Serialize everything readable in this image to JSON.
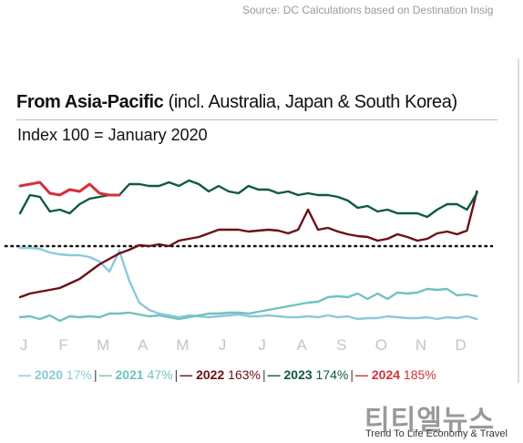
{
  "source": "Source: DC Calculations based on Destination Insig",
  "title_bold": "From Asia-Pacific",
  "title_rest": " (incl. Australia, Japan & South Korea)",
  "subtitle": "Index 100 = January 2020",
  "legend": [
    {
      "swatch": "—",
      "year": "2020",
      "pct": " 17%",
      "color": "#8cc8dc"
    },
    {
      "swatch": "—",
      "year": "2021",
      "pct": " 47%",
      "color": "#6fc3bd"
    },
    {
      "swatch": "—",
      "year": "2022",
      "pct": " 163%",
      "color": "#6b0f14"
    },
    {
      "swatch": "—",
      "year": "2023",
      "pct": " 174%",
      "color": "#0e5a3c"
    },
    {
      "swatch": "—",
      "year": "2024",
      "pct": " 185%",
      "color": "#d4303a"
    }
  ],
  "watermark": {
    "title": "티티엘뉴스",
    "tagline": "Trend To Life Economy & Travel"
  },
  "chart_data": {
    "type": "line",
    "title": "From Asia-Pacific (incl. Australia, Japan & South Korea)",
    "subtitle": "Index 100 = January 2020",
    "categories": [
      "J",
      "F",
      "M",
      "A",
      "M",
      "J",
      "J",
      "A",
      "S",
      "O",
      "N",
      "D"
    ],
    "reference_line": 100,
    "ylim": [
      0,
      230
    ],
    "series": [
      {
        "name": "2020",
        "color": "#8cc8dc",
        "x": [
          0,
          0.25,
          0.5,
          0.75,
          1,
          1.25,
          1.5,
          1.75,
          2,
          2.25,
          2.5,
          2.75,
          3,
          3.25,
          3.5,
          3.75,
          4,
          4.25,
          4.5,
          4.75,
          5,
          5.25,
          5.5,
          5.75,
          6,
          6.25,
          6.5,
          6.75,
          7,
          7.25,
          7.5,
          7.75,
          8,
          8.25,
          8.5,
          8.75,
          9,
          9.25,
          9.5,
          9.75,
          10,
          10.25,
          10.5,
          10.75,
          11,
          11.25,
          11.5
        ],
        "y": [
          98,
          98,
          97,
          93,
          91,
          90,
          90,
          88,
          83,
          72,
          95,
          62,
          38,
          30,
          26,
          24,
          22,
          24,
          23,
          22,
          23,
          24,
          25,
          23,
          23,
          24,
          23,
          22,
          22,
          23,
          22,
          24,
          22,
          23,
          20,
          21,
          21,
          23,
          22,
          21,
          21,
          22,
          20,
          22,
          21,
          23,
          20
        ]
      },
      {
        "name": "2021",
        "color": "#6fc3bd",
        "x": [
          0,
          0.25,
          0.5,
          0.75,
          1,
          1.25,
          1.5,
          1.75,
          2,
          2.25,
          2.5,
          2.75,
          3,
          3.25,
          3.5,
          3.75,
          4,
          4.25,
          4.5,
          4.75,
          5,
          5.25,
          5.5,
          5.75,
          6,
          6.25,
          6.5,
          6.75,
          7,
          7.25,
          7.5,
          7.75,
          8,
          8.25,
          8.5,
          8.75,
          9,
          9.25,
          9.5,
          9.75,
          10,
          10.25,
          10.5,
          10.75,
          11,
          11.25,
          11.5
        ],
        "y": [
          22,
          23,
          20,
          24,
          18,
          23,
          22,
          23,
          22,
          26,
          26,
          27,
          25,
          23,
          24,
          22,
          20,
          22,
          24,
          26,
          26,
          27,
          27,
          26,
          28,
          30,
          32,
          34,
          36,
          38,
          39,
          44,
          45,
          44,
          48,
          42,
          48,
          42,
          49,
          48,
          49,
          53,
          52,
          53,
          46,
          47,
          45
        ]
      },
      {
        "name": "2022",
        "color": "#6b0f14",
        "x": [
          0,
          0.25,
          0.5,
          0.75,
          1,
          1.25,
          1.5,
          1.75,
          2,
          2.25,
          2.5,
          2.75,
          3,
          3.25,
          3.5,
          3.75,
          4,
          4.25,
          4.5,
          4.75,
          5,
          5.25,
          5.5,
          5.75,
          6,
          6.25,
          6.5,
          6.75,
          7,
          7.25,
          7.5,
          7.75,
          8,
          8.25,
          8.5,
          8.75,
          9,
          9.25,
          9.5,
          9.75,
          10,
          10.25,
          10.5,
          10.75,
          11,
          11.25,
          11.5
        ],
        "y": [
          44,
          48,
          50,
          52,
          54,
          59,
          64,
          72,
          80,
          86,
          92,
          96,
          101,
          100,
          102,
          100,
          106,
          108,
          110,
          114,
          118,
          118,
          118,
          116,
          117,
          118,
          117,
          114,
          118,
          140,
          118,
          120,
          116,
          113,
          111,
          110,
          106,
          108,
          113,
          110,
          106,
          108,
          114,
          116,
          113,
          117,
          160
        ]
      },
      {
        "name": "2023",
        "color": "#0e5a3c",
        "x": [
          0,
          0.25,
          0.5,
          0.75,
          1,
          1.25,
          1.5,
          1.75,
          2,
          2.25,
          2.5,
          2.75,
          3,
          3.25,
          3.5,
          3.75,
          4,
          4.25,
          4.5,
          4.75,
          5,
          5.25,
          5.5,
          5.75,
          6,
          6.25,
          6.5,
          6.75,
          7,
          7.25,
          7.5,
          7.75,
          8,
          8.25,
          8.5,
          8.75,
          9,
          9.25,
          9.5,
          9.75,
          10,
          10.25,
          10.5,
          10.75,
          11,
          11.25,
          11.5
        ],
        "y": [
          136,
          156,
          154,
          138,
          140,
          136,
          146,
          152,
          154,
          156,
          156,
          168,
          168,
          166,
          166,
          170,
          166,
          172,
          168,
          160,
          166,
          160,
          158,
          166,
          162,
          162,
          158,
          160,
          156,
          158,
          156,
          156,
          154,
          150,
          142,
          144,
          138,
          140,
          136,
          136,
          136,
          132,
          140,
          146,
          146,
          140,
          158
        ]
      },
      {
        "name": "2024",
        "color": "#d4303a",
        "x": [
          0,
          0.25,
          0.5,
          0.75,
          1,
          1.25,
          1.5,
          1.75,
          2,
          2.25,
          2.5
        ],
        "y": [
          166,
          168,
          170,
          158,
          156,
          162,
          160,
          168,
          158,
          156,
          156
        ]
      }
    ]
  }
}
